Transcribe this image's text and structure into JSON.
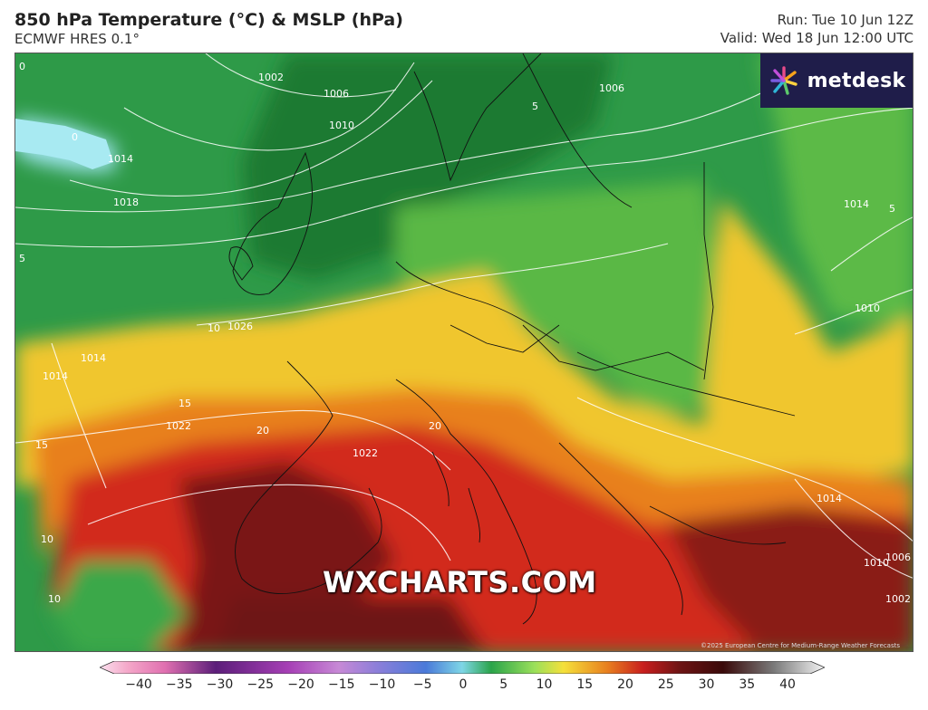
{
  "header": {
    "title": "850 hPa Temperature (°C) & MSLP (hPa)",
    "model": "ECMWF HRES 0.1°",
    "run": "Run: Tue 10 Jun 12Z",
    "valid": "Valid: Wed 18 Jun 12:00 UTC"
  },
  "branding": {
    "logo_text": "metdesk",
    "watermark": "WXCHARTS.COM",
    "copyright": "©2025 European Centre for Medium-Range Weather Forecasts"
  },
  "map": {
    "region": "Europe",
    "isobar_labels": [
      "1002",
      "1006",
      "1006",
      "1010",
      "1014",
      "1018",
      "1026",
      "1014",
      "1014",
      "1014",
      "1022",
      "1022",
      "1014",
      "1010",
      "1010",
      "1006",
      "1002"
    ],
    "temperature_labels": [
      "0",
      "0",
      "5",
      "5",
      "5",
      "10",
      "10",
      "10",
      "15",
      "15",
      "20",
      "20"
    ]
  },
  "colorbar": {
    "ticks": [
      "−40",
      "−35",
      "−30",
      "−25",
      "−20",
      "−15",
      "−10",
      "−5",
      "0",
      "5",
      "10",
      "15",
      "20",
      "25",
      "30",
      "35",
      "40"
    ],
    "colors": {
      "m40": "#f4a6c8",
      "m35": "#e070b0",
      "m30": "#8b2a8a",
      "m25": "#5c1e7a",
      "m20": "#a63fb5",
      "m15": "#c789d6",
      "m10": "#8f7fd9",
      "m5": "#4a7ad9",
      "z0": "#7ed6e6",
      "p5": "#2aa44a",
      "p10": "#9be05a",
      "p15": "#f5e03a",
      "p20": "#e8801f",
      "p25": "#c81e1e",
      "p30": "#6e1414",
      "p35": "#7a7a7a",
      "p40": "#e8e8e8"
    }
  }
}
